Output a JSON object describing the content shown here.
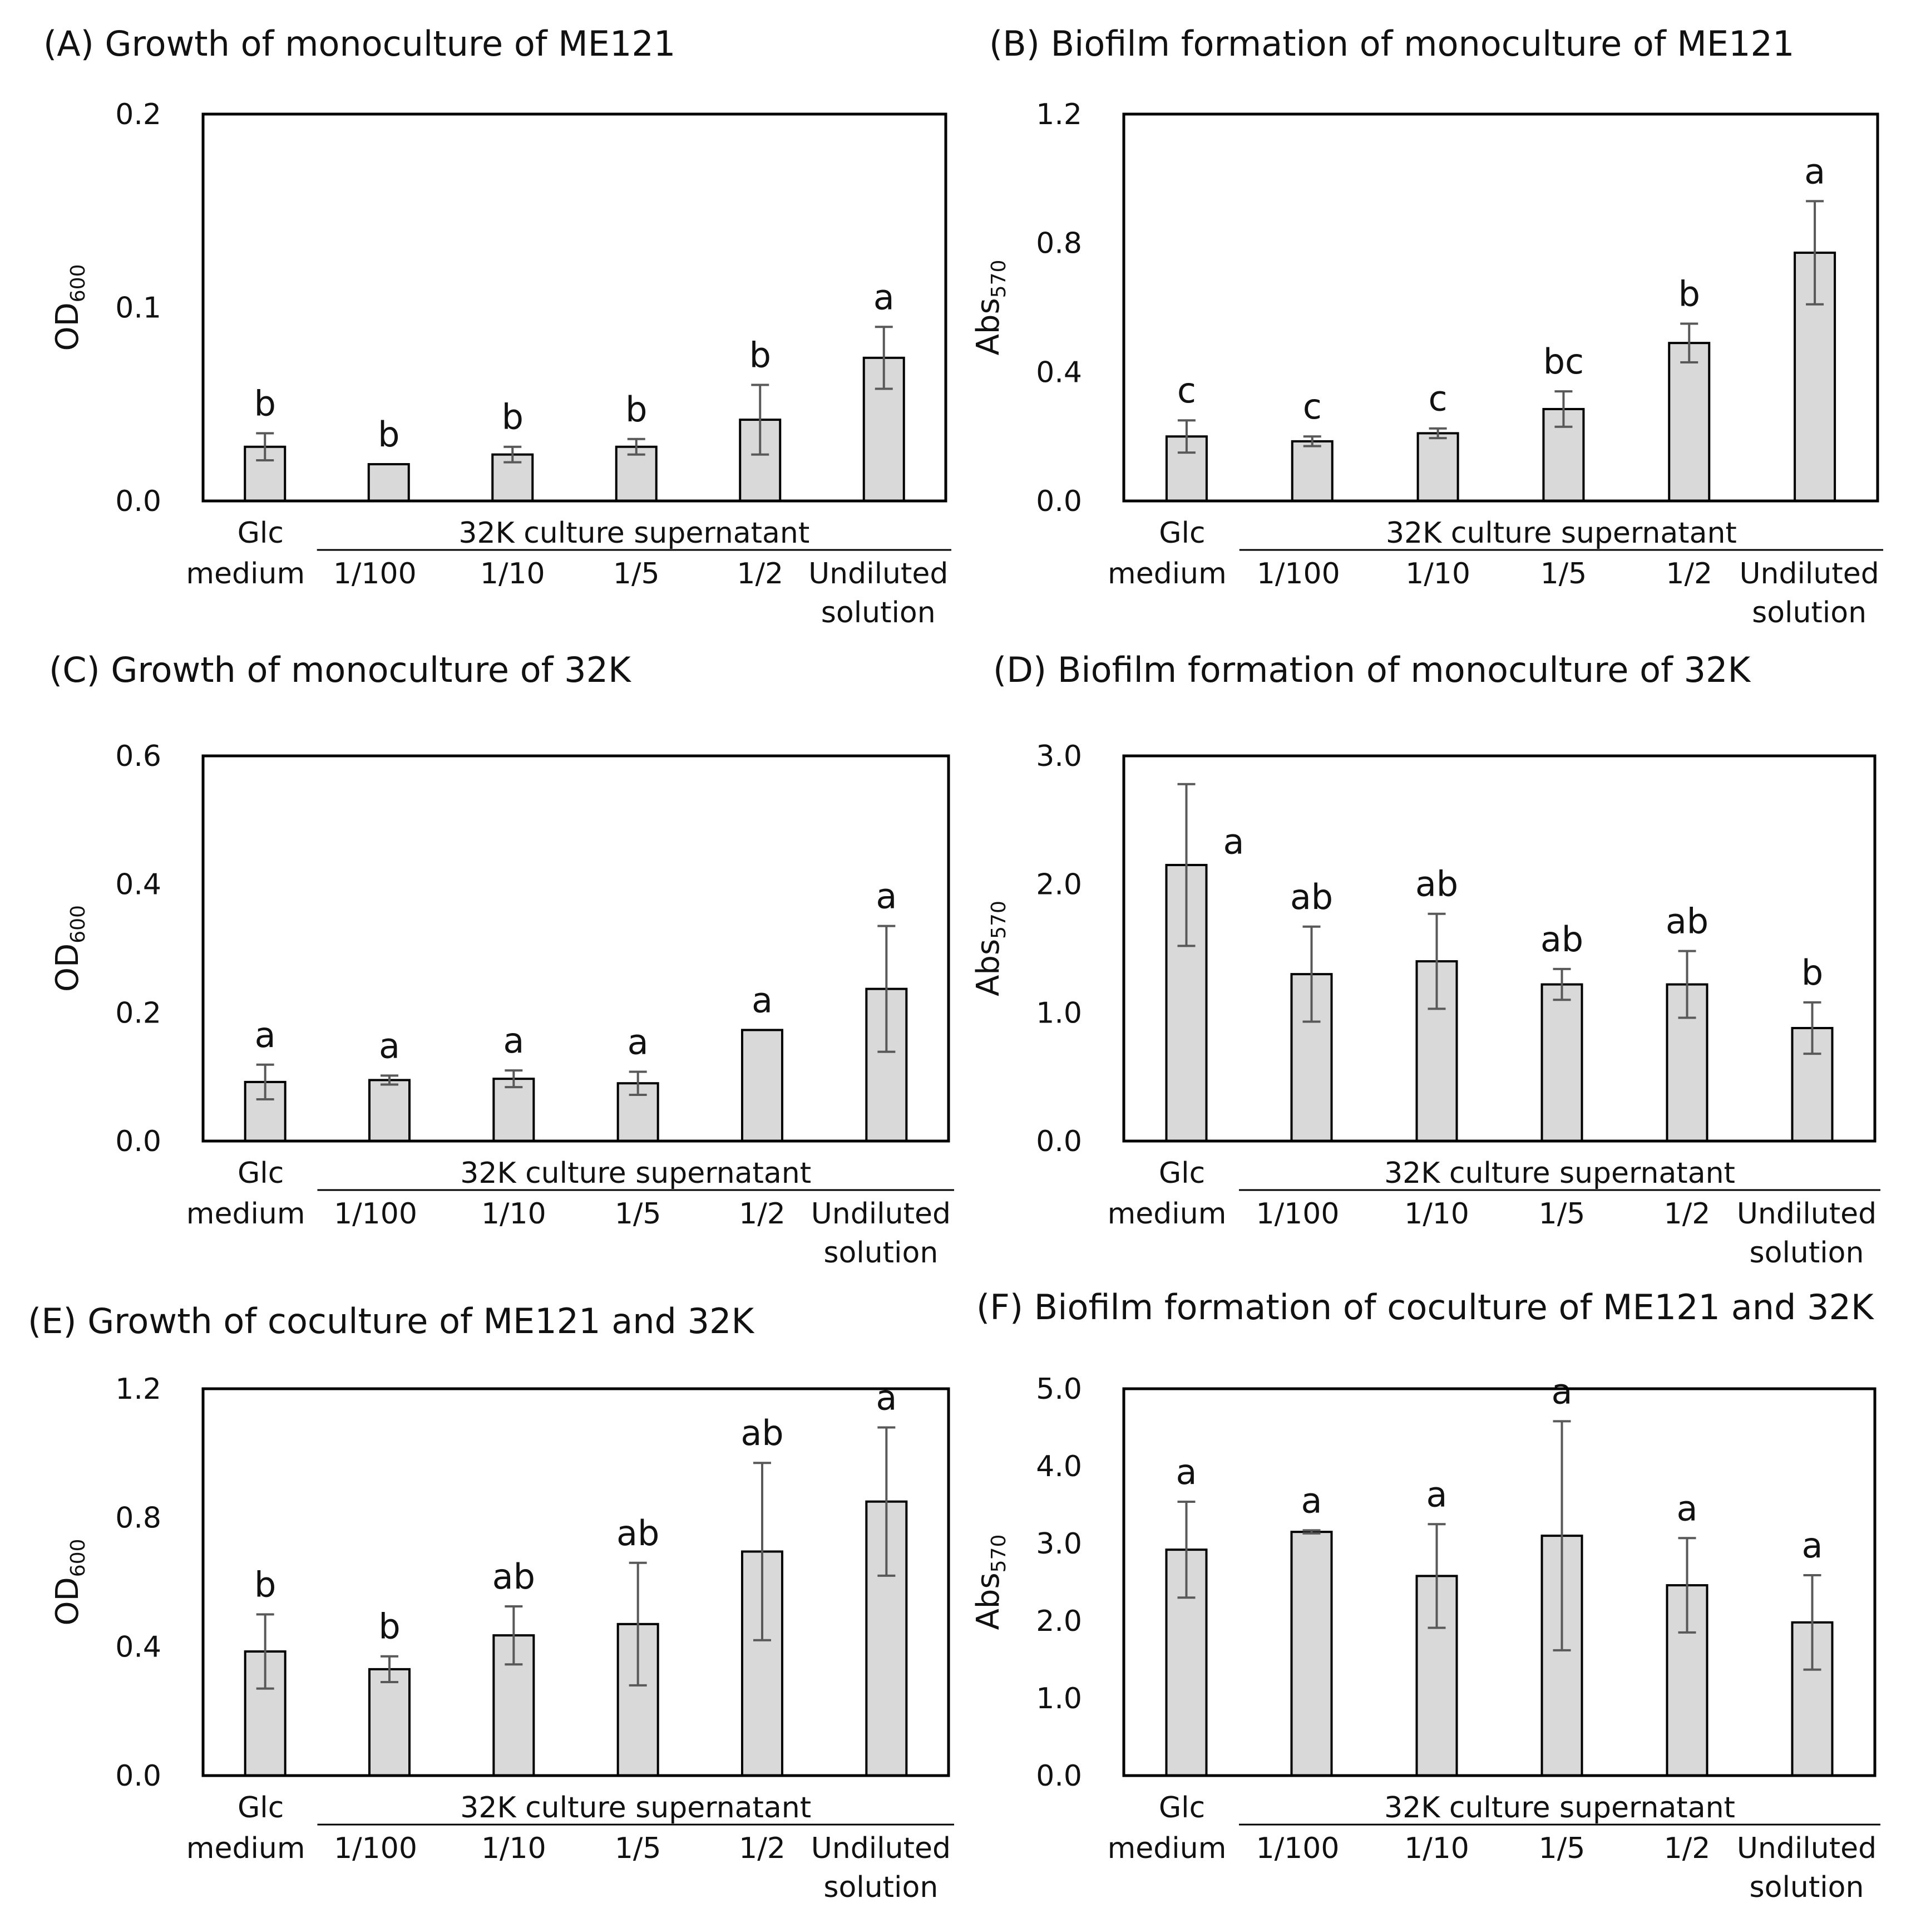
{
  "chart_data": [
    {
      "panel": "A",
      "type": "bar",
      "title": "(A) Growth of monoculture of ME121",
      "ylabel": "OD",
      "ylabel_sub": "600",
      "ylim": [
        0,
        0.2
      ],
      "yticks": [
        "0.0",
        "0.1",
        "0.2"
      ],
      "group_label": "32K culture supernatant",
      "categories": [
        [
          "Glc",
          "medium"
        ],
        [
          "1/100"
        ],
        [
          "1/10"
        ],
        [
          "1/5"
        ],
        [
          "1/2"
        ],
        [
          "Undiluted",
          "solution"
        ]
      ],
      "values": [
        0.028,
        0.019,
        0.024,
        0.028,
        0.042,
        0.074
      ],
      "errors": [
        0.007,
        0.0,
        0.004,
        0.004,
        0.018,
        0.016
      ],
      "letters": [
        "b",
        "b",
        "b",
        "b",
        "b",
        "a"
      ]
    },
    {
      "panel": "B",
      "type": "bar",
      "title": "(B) Biofilm formation of monoculture of ME121",
      "ylabel": "Abs",
      "ylabel_sub": "570",
      "ylim": [
        0,
        1.2
      ],
      "yticks": [
        "0.0",
        "0.4",
        "0.8",
        "1.2"
      ],
      "group_label": "32K culture supernatant",
      "categories": [
        [
          "Glc",
          "medium"
        ],
        [
          "1/100"
        ],
        [
          "1/10"
        ],
        [
          "1/5"
        ],
        [
          "1/2"
        ],
        [
          "Undiluted",
          "solution"
        ]
      ],
      "values": [
        0.2,
        0.185,
        0.21,
        0.285,
        0.49,
        0.77
      ],
      "errors": [
        0.05,
        0.015,
        0.015,
        0.055,
        0.06,
        0.16
      ],
      "letters": [
        "c",
        "c",
        "c",
        "bc",
        "b",
        "a"
      ]
    },
    {
      "panel": "C",
      "type": "bar",
      "title": "(C) Growth of monoculture of 32K",
      "ylabel": "OD",
      "ylabel_sub": "600",
      "ylim": [
        0,
        0.6
      ],
      "yticks": [
        "0.0",
        "0.2",
        "0.4",
        "0.6"
      ],
      "group_label": "32K culture supernatant",
      "categories": [
        [
          "Glc",
          "medium"
        ],
        [
          "1/100"
        ],
        [
          "1/10"
        ],
        [
          "1/5"
        ],
        [
          "1/2"
        ],
        [
          "Undiluted",
          "solution"
        ]
      ],
      "values": [
        0.092,
        0.095,
        0.097,
        0.09,
        0.173,
        0.237
      ],
      "errors": [
        0.027,
        0.007,
        0.013,
        0.018,
        0.0,
        0.098
      ],
      "letters": [
        "a",
        "a",
        "a",
        "a",
        "a",
        "a"
      ]
    },
    {
      "panel": "D",
      "type": "bar",
      "title": "(D) Biofilm formation of monoculture of 32K",
      "ylabel": "Abs",
      "ylabel_sub": "570",
      "ylim": [
        0,
        3.0
      ],
      "yticks": [
        "0.0",
        "1.0",
        "2.0",
        "3.0"
      ],
      "group_label": "32K culture supernatant",
      "categories": [
        [
          "Glc",
          "medium"
        ],
        [
          "1/100"
        ],
        [
          "1/10"
        ],
        [
          "1/5"
        ],
        [
          "1/2"
        ],
        [
          "Undiluted",
          "solution"
        ]
      ],
      "values": [
        2.15,
        1.3,
        1.4,
        1.22,
        1.22,
        0.88
      ],
      "errors": [
        0.63,
        0.37,
        0.37,
        0.12,
        0.26,
        0.2
      ],
      "letters": [
        "a",
        "ab",
        "ab",
        "ab",
        "ab",
        "b"
      ]
    },
    {
      "panel": "E",
      "type": "bar",
      "title": "(E) Growth of coculture of ME121 and 32K",
      "ylabel": "OD",
      "ylabel_sub": "600",
      "ylim": [
        0,
        1.2
      ],
      "yticks": [
        "0.0",
        "0.4",
        "0.8",
        "1.2"
      ],
      "group_label": "32K culture supernatant",
      "categories": [
        [
          "Glc",
          "medium"
        ],
        [
          "1/100"
        ],
        [
          "1/10"
        ],
        [
          "1/5"
        ],
        [
          "1/2"
        ],
        [
          "Undiluted",
          "solution"
        ]
      ],
      "values": [
        0.385,
        0.33,
        0.435,
        0.47,
        0.695,
        0.85
      ],
      "errors": [
        0.115,
        0.04,
        0.09,
        0.19,
        0.275,
        0.23
      ],
      "letters": [
        "b",
        "b",
        "ab",
        "ab",
        "ab",
        "a"
      ]
    },
    {
      "panel": "F",
      "type": "bar",
      "title": "(F) Biofilm formation of coculture of ME121 and 32K",
      "ylabel": "Abs",
      "ylabel_sub": "570",
      "ylim": [
        0,
        5.0
      ],
      "yticks": [
        "0.0",
        "1.0",
        "2.0",
        "3.0",
        "4.0",
        "5.0"
      ],
      "group_label": "32K culture supernatant",
      "categories": [
        [
          "Glc",
          "medium"
        ],
        [
          "1/100"
        ],
        [
          "1/10"
        ],
        [
          "1/5"
        ],
        [
          "1/2"
        ],
        [
          "Undiluted",
          "solution"
        ]
      ],
      "values": [
        2.92,
        3.15,
        2.58,
        3.1,
        2.46,
        1.98
      ],
      "errors": [
        0.62,
        0.02,
        0.67,
        1.48,
        0.61,
        0.61
      ],
      "letters": [
        "a",
        "a",
        "a",
        "a",
        "a",
        "a"
      ]
    }
  ]
}
